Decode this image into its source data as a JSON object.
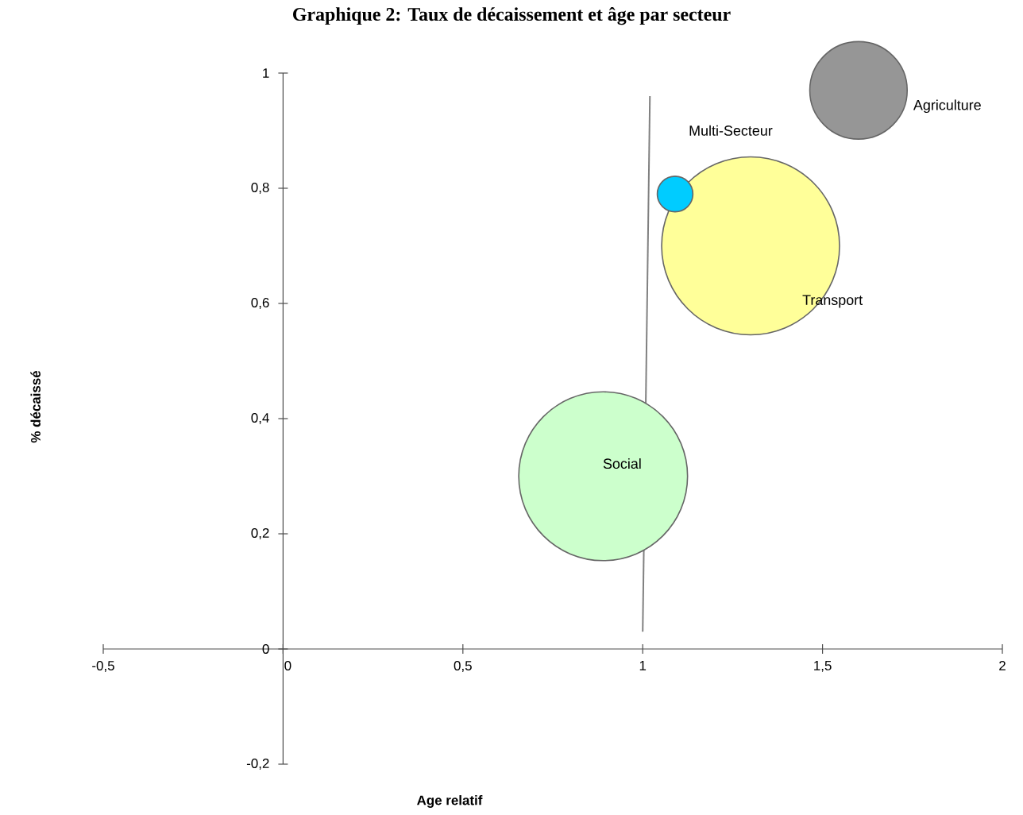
{
  "chart_data": {
    "type": "bubble",
    "title": "Graphique 2: Taux de décaissement et âge par secteur",
    "xlabel": "Age relatif",
    "ylabel": "% décaissé",
    "xlim": [
      -0.5,
      2
    ],
    "ylim": [
      -0.2,
      1
    ],
    "xticks": [
      {
        "value": -0.5,
        "label": "-0,5"
      },
      0,
      {
        "value": 0.5,
        "label": "0,5"
      },
      1,
      {
        "value": 1.5,
        "label": "1,5"
      },
      2
    ],
    "yticks": [
      {
        "value": -0.2,
        "label": "-0,2"
      },
      0,
      {
        "value": 0.2,
        "label": "0,2"
      },
      {
        "value": 0.4,
        "label": "0,4"
      },
      {
        "value": 0.6,
        "label": "0,6"
      },
      {
        "value": 0.8,
        "label": "0,8"
      },
      1
    ],
    "series": [
      {
        "name": "Agriculture",
        "color": "#969696",
        "x": [
          1.6
        ],
        "values": [
          0.97
        ],
        "sizes": [
          0.3
        ]
      },
      {
        "name": "Transport",
        "color": "#ffff99",
        "x": [
          1.3
        ],
        "values": [
          0.7
        ],
        "sizes": [
          1
        ]
      },
      {
        "name": "Multi-Secteur",
        "color": "#00ccff",
        "x": [
          1.09
        ],
        "values": [
          0.79
        ],
        "sizes": [
          0.04
        ]
      },
      {
        "name": "Social",
        "color": "#ccffcc",
        "x": [
          0.89
        ],
        "values": [
          0.3
        ],
        "sizes": [
          0.9
        ]
      },
      {
        "type": "line",
        "color": "#808080",
        "marker": "none",
        "x": [
          1.02,
          1.0
        ],
        "values": [
          0.96,
          0.03
        ]
      }
    ]
  }
}
